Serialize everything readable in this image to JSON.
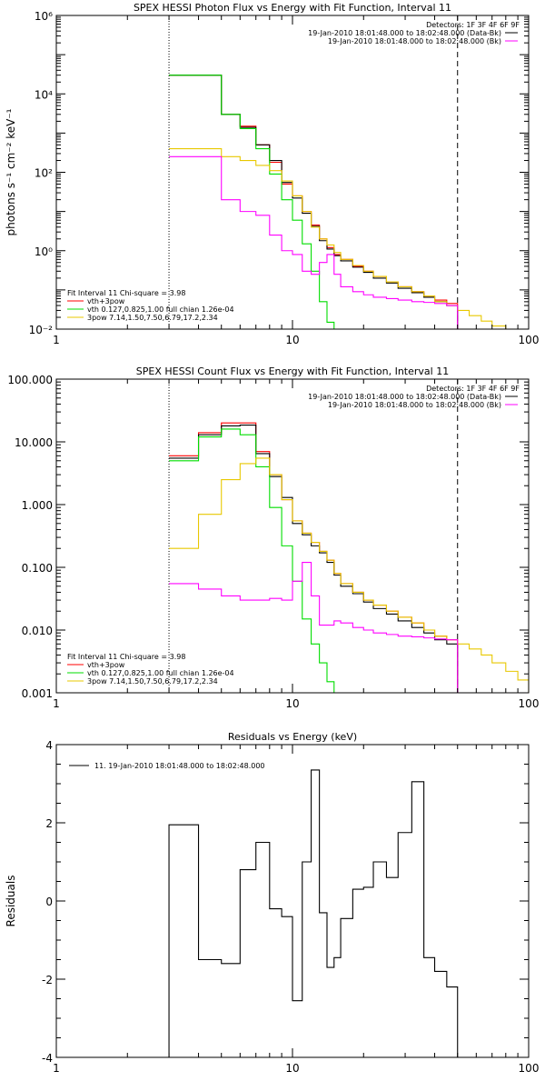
{
  "chart_data": [
    {
      "type": "line",
      "title": "SPEX HESSI Photon Flux vs Energy with Fit Function, Interval 11",
      "xlabel": "",
      "ylabel": "photons s⁻¹ cm⁻² keV⁻¹",
      "xscale": "log",
      "yscale": "log",
      "xlim": [
        1,
        100
      ],
      "ylim": [
        0.01,
        1000000
      ],
      "x_ticks": [
        1,
        10,
        100
      ],
      "x_tick_labels": [
        "1",
        "10",
        "100"
      ],
      "y_ticks": [
        0.01,
        1,
        100,
        10000,
        1000000
      ],
      "y_tick_labels": [
        "10⁻²",
        "10⁰",
        "10²",
        "10⁴",
        "10⁶"
      ],
      "vlines": [
        {
          "x": 3.0,
          "style": "dotted"
        },
        {
          "x": 50.0,
          "style": "dashed"
        }
      ],
      "legend_top": {
        "header": "Detectors: 1F 3F 4F 6F 9F",
        "entries": [
          {
            "label": "19-Jan-2010 18:01:48.000 to 18:02:48.000 (Data-Bk)",
            "color": "#000000"
          },
          {
            "label": "19-Jan-2010 18:01:48.000 to 18:02:48.000 (Bk)",
            "color": "#ff00ff"
          }
        ]
      },
      "legend_bottom": {
        "header": "Fit Interval 11    Chi-square = 3.98",
        "entries": [
          {
            "label": "vth+3pow",
            "color": "#ff0000"
          },
          {
            "label": "vth 0.127,0.825,1.00  full chian 1.26e-04",
            "color": "#00dd00"
          },
          {
            "label": "3pow 7.14,1.50,7.50,6.79,17.2,2.34",
            "color": "#e8c800"
          }
        ]
      },
      "bin_edges": [
        3,
        4,
        5,
        6,
        7,
        8,
        9,
        10,
        11,
        12,
        13,
        14,
        15,
        16,
        18,
        20,
        22,
        25,
        28,
        32,
        36,
        40,
        45,
        50,
        56,
        63,
        70,
        80,
        90
      ],
      "series": [
        {
          "name": "vth+3pow",
          "color": "#ff0000",
          "step": true,
          "edges_slice": [
            0,
            23
          ],
          "values": [
            30000,
            30000,
            3000,
            1500,
            500,
            180,
            50,
            25,
            10,
            4.5,
            2,
            1.2,
            0.8,
            0.6,
            0.4,
            0.3,
            0.22,
            0.16,
            0.12,
            0.09,
            0.07,
            0.055,
            0.045
          ]
        },
        {
          "name": "",
          "color": "#000000",
          "step": true,
          "edges_slice": [
            0,
            23
          ],
          "values": [
            30000,
            30000,
            3000,
            1400,
            500,
            200,
            55,
            22,
            9,
            4.2,
            1.8,
            1.1,
            0.75,
            0.55,
            0.38,
            0.28,
            0.2,
            0.15,
            0.11,
            0.085,
            0.065,
            0.05,
            0.04
          ]
        },
        {
          "name": "",
          "color": "#00dd00",
          "step": true,
          "edges_slice": [
            0,
            13
          ],
          "values": [
            30000,
            30000,
            3000,
            1300,
            400,
            90,
            20,
            6,
            1.5,
            0.3,
            0.05,
            0.015,
            0.01
          ]
        },
        {
          "name": "",
          "color": "#e8c800",
          "step": true,
          "edges_slice": [
            0,
            28
          ],
          "values": [
            400,
            400,
            250,
            200,
            150,
            110,
            60,
            25,
            10,
            4,
            2,
            1.4,
            0.9,
            0.6,
            0.42,
            0.3,
            0.22,
            0.16,
            0.12,
            0.09,
            0.07,
            0.05,
            0.04,
            0.03,
            0.022,
            0.016,
            0.012,
            0.01
          ]
        },
        {
          "name": "",
          "color": "#ff00ff",
          "step": true,
          "edges_slice": [
            0,
            23
          ],
          "values": [
            250,
            250,
            20,
            10,
            8,
            2.5,
            1.0,
            0.8,
            0.3,
            0.25,
            0.5,
            0.8,
            0.25,
            0.12,
            0.09,
            0.075,
            0.065,
            0.06,
            0.055,
            0.05,
            0.048,
            0.045,
            0.04
          ]
        }
      ]
    },
    {
      "type": "line",
      "title": "SPEX HESSI Count Flux vs Energy with Fit Function, Interval 11",
      "xlabel": "",
      "ylabel": "",
      "xscale": "log",
      "yscale": "log",
      "xlim": [
        1,
        100
      ],
      "ylim": [
        0.001,
        100
      ],
      "x_ticks": [
        1,
        10,
        100
      ],
      "x_tick_labels": [
        "1",
        "10",
        "100"
      ],
      "y_ticks": [
        0.001,
        0.01,
        0.1,
        1,
        10,
        100
      ],
      "y_tick_labels": [
        "0.001",
        "0.010",
        "0.100",
        "1.000",
        "10.000",
        "100.000"
      ],
      "vlines": [
        {
          "x": 3.0,
          "style": "dotted"
        },
        {
          "x": 50.0,
          "style": "dashed"
        }
      ],
      "legend_top": {
        "header": "Detectors: 1F 3F 4F 6F 9F",
        "entries": [
          {
            "label": "19-Jan-2010 18:01:48.000 to 18:02:48.000 (Data-Bk)",
            "color": "#000000"
          },
          {
            "label": "19-Jan-2010 18:01:48.000 to 18:02:48.000 (Bk)",
            "color": "#ff00ff"
          }
        ]
      },
      "legend_bottom": {
        "header": "Fit Interval 11    Chi-square = 3.98",
        "entries": [
          {
            "label": "vth+3pow",
            "color": "#ff0000"
          },
          {
            "label": "vth 0.127,0.825,1.00  full chian 1.26e-04",
            "color": "#00dd00"
          },
          {
            "label": "3pow 7.14,1.50,7.50,6.79,17.2,2.34",
            "color": "#e8c800"
          }
        ]
      },
      "bin_edges": [
        3,
        4,
        5,
        6,
        7,
        8,
        9,
        10,
        11,
        12,
        13,
        14,
        15,
        16,
        18,
        20,
        22,
        25,
        28,
        32,
        36,
        40,
        45,
        50,
        56,
        63,
        70,
        80,
        90,
        100
      ],
      "series": [
        {
          "name": "",
          "color": "#ff0000",
          "step": true,
          "edges_slice": [
            0,
            23
          ],
          "values": [
            6.0,
            14.0,
            20.0,
            20.0,
            7.0,
            3.0,
            1.2,
            0.55,
            0.35,
            0.25,
            0.18,
            0.13,
            0.08,
            0.055,
            0.04,
            0.03,
            0.025,
            0.02,
            0.016,
            0.013,
            0.01,
            0.008,
            0.007
          ]
        },
        {
          "name": "",
          "color": "#000000",
          "step": true,
          "edges_slice": [
            0,
            23
          ],
          "values": [
            5.5,
            13.0,
            18.0,
            18.5,
            6.5,
            2.8,
            1.3,
            0.5,
            0.33,
            0.22,
            0.17,
            0.12,
            0.075,
            0.05,
            0.038,
            0.028,
            0.022,
            0.018,
            0.014,
            0.011,
            0.009,
            0.007,
            0.006
          ]
        },
        {
          "name": "",
          "color": "#00dd00",
          "step": true,
          "edges_slice": [
            0,
            13
          ],
          "values": [
            5.0,
            12.0,
            16.0,
            13.0,
            4.0,
            0.9,
            0.22,
            0.06,
            0.015,
            0.006,
            0.003,
            0.0015,
            0.001
          ]
        },
        {
          "name": "",
          "color": "#e8c800",
          "step": true,
          "edges_slice": [
            0,
            29
          ],
          "values": [
            0.2,
            0.7,
            2.5,
            4.5,
            5.5,
            3.0,
            1.2,
            0.55,
            0.35,
            0.25,
            0.18,
            0.13,
            0.08,
            0.055,
            0.04,
            0.03,
            0.025,
            0.02,
            0.016,
            0.013,
            0.01,
            0.008,
            0.007,
            0.006,
            0.005,
            0.004,
            0.003,
            0.0022,
            0.0016
          ]
        },
        {
          "name": "",
          "color": "#ff00ff",
          "step": true,
          "edges_slice": [
            0,
            23
          ],
          "values": [
            0.055,
            0.045,
            0.035,
            0.03,
            0.03,
            0.032,
            0.03,
            0.06,
            0.12,
            0.035,
            0.012,
            0.012,
            0.014,
            0.013,
            0.011,
            0.01,
            0.009,
            0.0085,
            0.008,
            0.0078,
            0.0075,
            0.0072,
            0.007
          ]
        }
      ]
    },
    {
      "type": "line",
      "title": "Residuals vs Energy (keV)",
      "xlabel": "",
      "ylabel": "Residuals",
      "xscale": "log",
      "yscale": "linear",
      "xlim": [
        1,
        100
      ],
      "ylim": [
        -4,
        4
      ],
      "x_ticks": [
        1,
        10,
        100
      ],
      "x_tick_labels": [
        "1",
        "10",
        "100"
      ],
      "y_ticks": [
        -4,
        -2,
        0,
        2,
        4
      ],
      "y_tick_labels": [
        "-4",
        "-2",
        "0",
        "2",
        "4"
      ],
      "vlines": [],
      "legend_top": {
        "header": "",
        "entries": [
          {
            "label": "11. 19-Jan-2010 18:01:48.000 to 18:02:48.000",
            "color": "#000000"
          }
        ]
      },
      "bin_edges": [
        3,
        4,
        5,
        6,
        7,
        8,
        9,
        10,
        11,
        12,
        13,
        14,
        15,
        16,
        18,
        20,
        22,
        25,
        28,
        32,
        36,
        40,
        45,
        50
      ],
      "series": [
        {
          "name": "",
          "color": "#000000",
          "step": true,
          "drop_ends": true,
          "edges_slice": [
            0,
            23
          ],
          "values": [
            1.95,
            -1.5,
            -1.6,
            0.8,
            1.5,
            -0.2,
            -0.4,
            -2.55,
            1.0,
            3.35,
            -0.3,
            -1.7,
            -1.45,
            -0.45,
            0.3,
            0.35,
            1.0,
            0.6,
            1.75,
            3.05,
            -1.45,
            -1.8,
            -2.2
          ]
        }
      ]
    }
  ]
}
